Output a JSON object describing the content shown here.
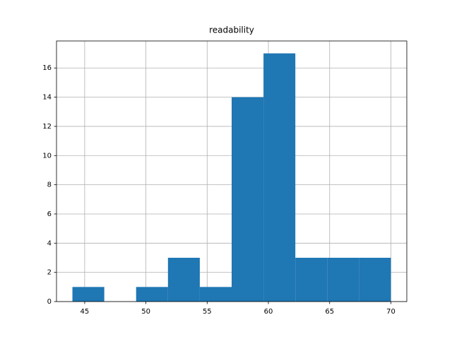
{
  "chart_data": {
    "type": "histogram",
    "title": "readability",
    "bins": [
      44,
      46.6,
      49.2,
      51.8,
      54.4,
      57,
      59.6,
      62.2,
      64.8,
      67.4,
      70
    ],
    "counts": [
      1,
      0,
      1,
      3,
      1,
      14,
      17,
      3,
      3,
      3
    ],
    "color": "#1f77b4",
    "xlim": [
      42.7,
      71.3
    ],
    "xticks": [
      45,
      50,
      55,
      60,
      65,
      70
    ],
    "ylim": [
      0,
      17.85
    ],
    "yticks": [
      0,
      2,
      4,
      6,
      8,
      10,
      12,
      14,
      16
    ],
    "grid": true
  }
}
